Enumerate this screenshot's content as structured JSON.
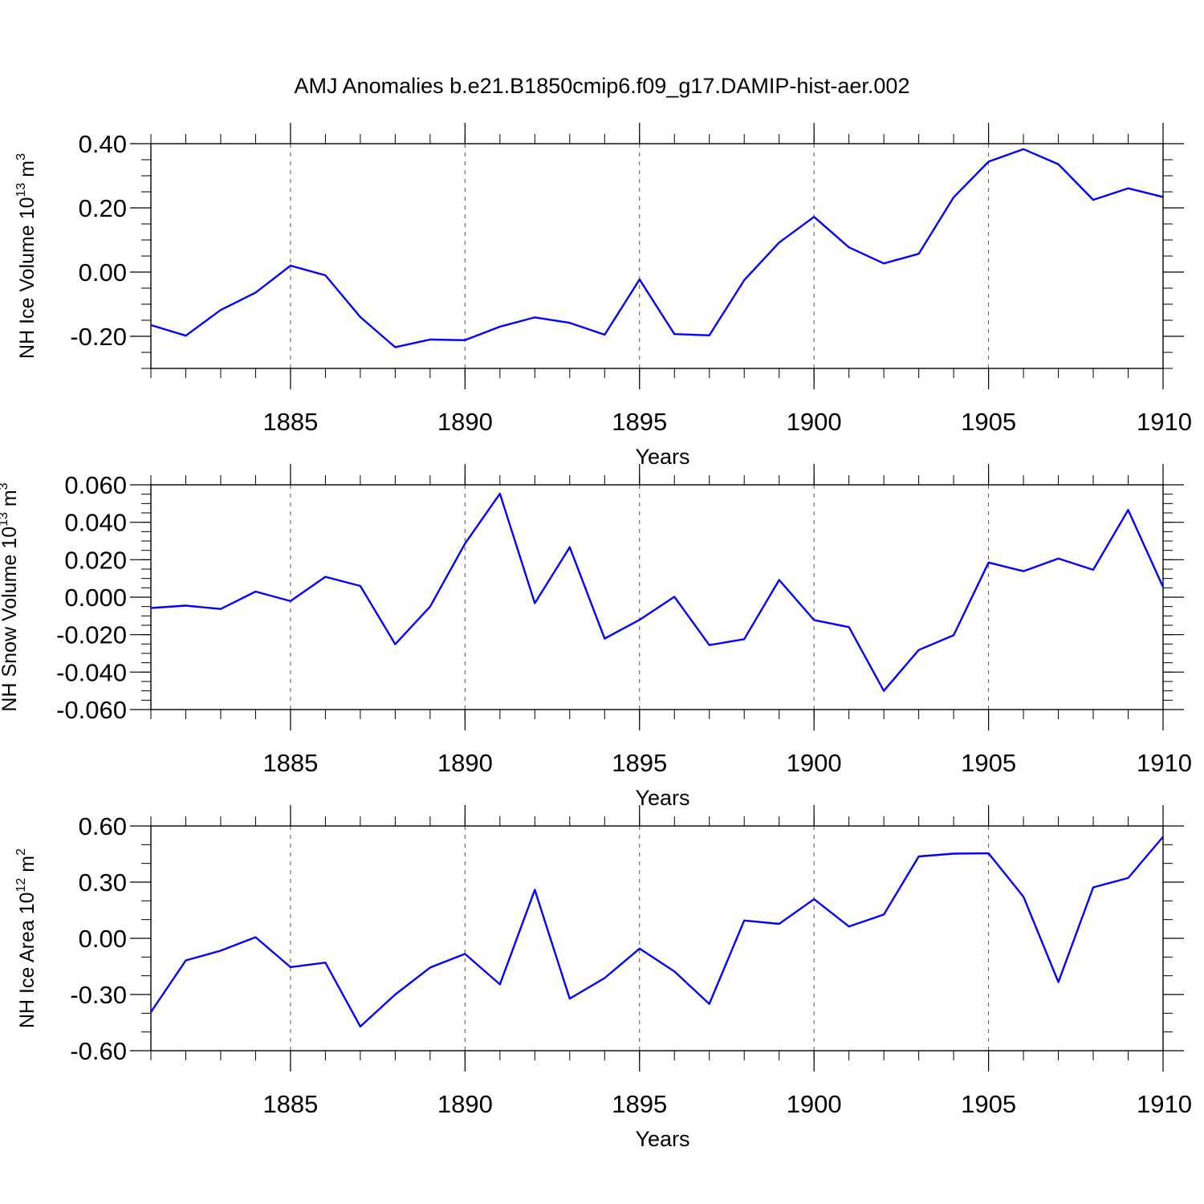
{
  "title": "AMJ Anomalies b.e21.B1850cmip6.f09_g17.DAMIP-hist-aer.002",
  "chart_data": [
    {
      "type": "line",
      "title": "AMJ Anomalies b.e21.B1850cmip6.f09_g17.DAMIP-hist-aer.002",
      "ylabel": "NH Ice Volume 10",
      "ylabel_exp": "13",
      "ylabel_unit": " m",
      "ylabel_unit_exp": "3",
      "xlabel": "Years",
      "xlim": [
        1881,
        1910
      ],
      "ylim": [
        -0.3,
        0.4
      ],
      "yticks": [
        0.4,
        0.2,
        0.0,
        -0.2
      ],
      "ytick_labels": [
        "0.40",
        "0.20",
        "0.00",
        "-0.20"
      ],
      "xticks": [
        1885,
        1890,
        1895,
        1900,
        1905,
        1910
      ],
      "xtick_labels": [
        "1885",
        "1890",
        "1895",
        "1900",
        "1905",
        "1910"
      ],
      "grid_x": [
        1885,
        1890,
        1895,
        1900,
        1905
      ],
      "color": "#0000ff",
      "x": [
        1881,
        1882,
        1883,
        1884,
        1885,
        1886,
        1887,
        1888,
        1889,
        1890,
        1891,
        1892,
        1893,
        1894,
        1895,
        1896,
        1897,
        1898,
        1899,
        1900,
        1901,
        1902,
        1903,
        1904,
        1905,
        1906,
        1907,
        1908,
        1909,
        1910
      ],
      "y": [
        -0.165,
        -0.198,
        -0.118,
        -0.064,
        0.02,
        -0.01,
        -0.14,
        -0.234,
        -0.21,
        -0.212,
        -0.17,
        -0.141,
        -0.158,
        -0.195,
        -0.023,
        -0.193,
        -0.197,
        -0.025,
        0.092,
        0.172,
        0.077,
        0.027,
        0.057,
        0.233,
        0.344,
        0.383,
        0.336,
        0.225,
        0.261,
        0.234
      ]
    },
    {
      "type": "line",
      "ylabel": "NH Snow Volume 10",
      "ylabel_exp": "13",
      "ylabel_unit": " m",
      "ylabel_unit_exp": "3",
      "xlabel": "Years",
      "xlim": [
        1881,
        1910
      ],
      "ylim": [
        -0.06,
        0.06
      ],
      "yticks": [
        0.06,
        0.04,
        0.02,
        0.0,
        -0.02,
        -0.04,
        -0.06
      ],
      "ytick_labels": [
        "0.060",
        "0.040",
        "0.020",
        "0.000",
        "-0.020",
        "-0.040",
        "-0.060"
      ],
      "xticks": [
        1885,
        1890,
        1895,
        1900,
        1905,
        1910
      ],
      "xtick_labels": [
        "1885",
        "1890",
        "1895",
        "1900",
        "1905",
        "1910"
      ],
      "grid_x": [
        1885,
        1890,
        1895,
        1900,
        1905
      ],
      "color": "#0000ff",
      "x": [
        1881,
        1882,
        1883,
        1884,
        1885,
        1886,
        1887,
        1888,
        1889,
        1890,
        1891,
        1892,
        1893,
        1894,
        1895,
        1896,
        1897,
        1898,
        1899,
        1900,
        1901,
        1902,
        1903,
        1904,
        1905,
        1906,
        1907,
        1908,
        1909,
        1910
      ],
      "y": [
        -0.0058,
        -0.0045,
        -0.0063,
        0.003,
        -0.0021,
        0.0109,
        0.006,
        -0.0251,
        -0.005,
        0.0286,
        0.0553,
        -0.0032,
        0.0267,
        -0.0221,
        -0.0121,
        0.0002,
        -0.0256,
        -0.0224,
        0.0092,
        -0.0122,
        -0.016,
        -0.05,
        -0.0282,
        -0.0203,
        0.0185,
        0.0139,
        0.0206,
        0.0146,
        0.0466,
        0.0054
      ]
    },
    {
      "type": "line",
      "ylabel": "NH Ice Area 10",
      "ylabel_exp": "12",
      "ylabel_unit": " m",
      "ylabel_unit_exp": "2",
      "xlabel": "Years",
      "xlim": [
        1881,
        1910
      ],
      "ylim": [
        -0.6,
        0.6
      ],
      "yticks": [
        0.6,
        0.3,
        0.0,
        -0.3,
        -0.6
      ],
      "ytick_labels": [
        "0.60",
        "0.30",
        "0.00",
        "-0.30",
        "-0.60"
      ],
      "xticks": [
        1885,
        1890,
        1895,
        1900,
        1905,
        1910
      ],
      "xtick_labels": [
        "1885",
        "1890",
        "1895",
        "1900",
        "1905",
        "1910"
      ],
      "grid_x": [
        1885,
        1890,
        1895,
        1900,
        1905
      ],
      "color": "#0000ff",
      "x": [
        1881,
        1882,
        1883,
        1884,
        1885,
        1886,
        1887,
        1888,
        1889,
        1890,
        1891,
        1892,
        1893,
        1894,
        1895,
        1896,
        1897,
        1898,
        1899,
        1900,
        1901,
        1902,
        1903,
        1904,
        1905,
        1906,
        1907,
        1908,
        1909,
        1910
      ],
      "y": [
        -0.394,
        -0.118,
        -0.066,
        0.006,
        -0.154,
        -0.13,
        -0.471,
        -0.3,
        -0.156,
        -0.083,
        -0.246,
        0.259,
        -0.322,
        -0.212,
        -0.055,
        -0.177,
        -0.35,
        0.095,
        0.077,
        0.209,
        0.063,
        0.127,
        0.437,
        0.452,
        0.454,
        0.222,
        -0.234,
        0.272,
        0.322,
        0.542
      ]
    }
  ]
}
